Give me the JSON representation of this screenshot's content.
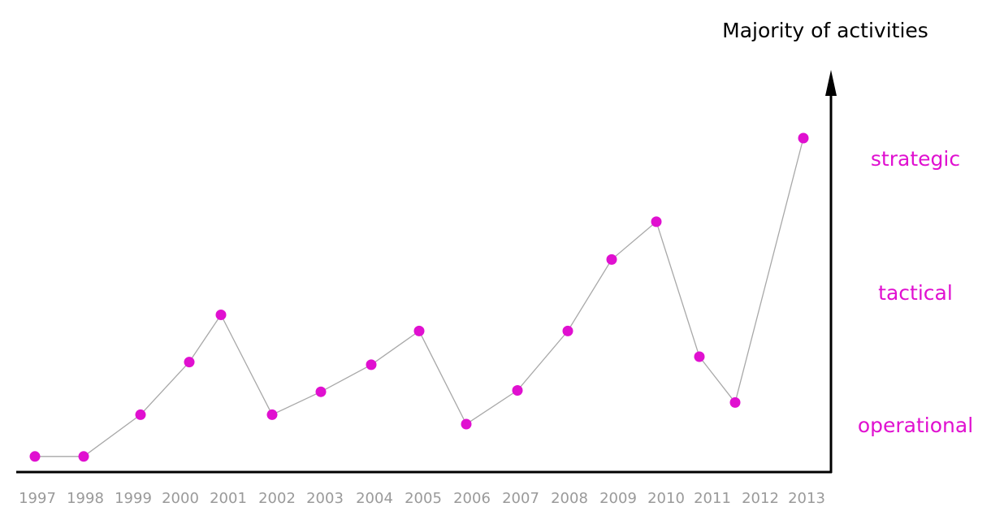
{
  "chart_data": {
    "type": "line",
    "title": "",
    "ylabel": "Majority of activities",
    "xlabel": "",
    "categories": [
      "1997",
      "1998",
      "1999",
      "2000",
      "2001",
      "2002",
      "2003",
      "2004",
      "2005",
      "2006",
      "2007",
      "2008",
      "2009",
      "2010",
      "2011",
      "2012",
      "2013"
    ],
    "x": [
      1997,
      1998,
      1999,
      2000,
      2001,
      2002,
      2003,
      2004,
      2005,
      2006,
      2007,
      2008,
      2009,
      2010,
      2011,
      2012,
      2013
    ],
    "y_levels": [
      "operational",
      "tactical",
      "strategic"
    ],
    "ylim": [
      -0.55,
      2.7
    ],
    "series": [
      {
        "values": [
          -0.24,
          -0.24,
          0.07,
          0.46,
          0.81,
          0.07,
          0.24,
          0.44,
          0.69,
          0.0,
          0.25,
          0.69,
          1.22,
          1.5,
          0.5,
          0.16,
          2.12
        ]
      }
    ],
    "grid": false,
    "legend": "none",
    "colors": {
      "marker": "#e010d0",
      "line": "#a8a8a8",
      "axis": "#000000",
      "level_label": "#e010d0",
      "tick_label": "#9a9a9a"
    }
  }
}
